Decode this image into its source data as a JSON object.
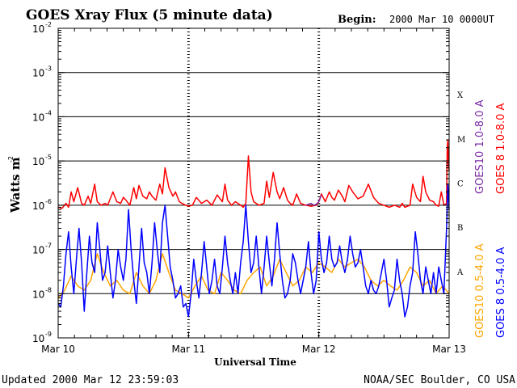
{
  "header": {
    "title": "GOES Xray Flux (5 minute data)",
    "begin_label": "Begin:",
    "begin_value": "2000 Mar 10 0000UT"
  },
  "footer": {
    "updated": "Updated 2000 Mar 12 23:59:03",
    "source": "NOAA/SEC Boulder, CO USA"
  },
  "chart_data": {
    "type": "line",
    "ylabel_main": "Watts m",
    "ylabel_sup": "-2",
    "xlabel": "Universal Time",
    "yscale": "log",
    "ylim": [
      1e-09,
      0.01
    ],
    "y_ticks": [
      {
        "exp": -2,
        "text": "10",
        "sup": "-2"
      },
      {
        "exp": -3,
        "text": "10",
        "sup": "-3"
      },
      {
        "exp": -4,
        "text": "10",
        "sup": "-4"
      },
      {
        "exp": -5,
        "text": "10",
        "sup": "-5"
      },
      {
        "exp": -6,
        "text": "10",
        "sup": "-6"
      },
      {
        "exp": -7,
        "text": "10",
        "sup": "-7"
      },
      {
        "exp": -8,
        "text": "10",
        "sup": "-8"
      },
      {
        "exp": -9,
        "text": "10",
        "sup": "-9"
      }
    ],
    "x_ticks": [
      {
        "day": 0,
        "label": "Mar 10"
      },
      {
        "day": 1,
        "label": "Mar 11"
      },
      {
        "day": 2,
        "label": "Mar 12"
      },
      {
        "day": 3,
        "label": "Mar 13"
      }
    ],
    "xlim_days": [
      0,
      3
    ],
    "grid_exps": [
      -3,
      -4,
      -5,
      -6,
      -7,
      -8
    ],
    "flare_classes": [
      {
        "label": "X",
        "exp": -3.5
      },
      {
        "label": "M",
        "exp": -4.5
      },
      {
        "label": "C",
        "exp": -5.5
      },
      {
        "label": "B",
        "exp": -6.5
      },
      {
        "label": "A",
        "exp": -7.5
      }
    ],
    "colors": {
      "goes10_long": "#7b2ca6",
      "goes8_long": "#ff0000",
      "goes10_short": "#ffa500",
      "goes8_short": "#0000ff"
    },
    "legend": [
      {
        "text": "GOES10 1.0-8.0 A",
        "color": "#7b2ca6"
      },
      {
        "text": "GOES 8 1.0-8.0 A",
        "color": "#ff0000"
      },
      {
        "text": "GOES10 0.5-4.0 A",
        "color": "#ffa500"
      },
      {
        "text": "GOES 8 0.5-4.0 A",
        "color": "#0000ff"
      }
    ],
    "series": [
      {
        "name": "GOES 8 1.0-8.0 A",
        "color": "#ff0000",
        "x": [
          0,
          0.03,
          0.06,
          0.08,
          0.1,
          0.12,
          0.15,
          0.18,
          0.2,
          0.23,
          0.25,
          0.28,
          0.3,
          0.33,
          0.36,
          0.38,
          0.42,
          0.45,
          0.48,
          0.5,
          0.52,
          0.55,
          0.58,
          0.6,
          0.62,
          0.65,
          0.68,
          0.7,
          0.72,
          0.75,
          0.78,
          0.8,
          0.82,
          0.85,
          0.88,
          0.9,
          0.93,
          0.95,
          0.98,
          1.0,
          1.03,
          1.06,
          1.1,
          1.14,
          1.18,
          1.22,
          1.26,
          1.28,
          1.3,
          1.33,
          1.36,
          1.4,
          1.42,
          1.44,
          1.46,
          1.48,
          1.5,
          1.54,
          1.58,
          1.6,
          1.62,
          1.65,
          1.68,
          1.7,
          1.73,
          1.76,
          1.78,
          1.8,
          1.83,
          1.86,
          1.9,
          1.94,
          1.98,
          2.0,
          2.02,
          2.05,
          2.08,
          2.1,
          2.12,
          2.15,
          2.18,
          2.2,
          2.23,
          2.26,
          2.3,
          2.34,
          2.38,
          2.42,
          2.46,
          2.5,
          2.54,
          2.58,
          2.6,
          2.62,
          2.64,
          2.66,
          2.7,
          2.72,
          2.75,
          2.78,
          2.8,
          2.82,
          2.85,
          2.88,
          2.9,
          2.92,
          2.94,
          2.96,
          2.98,
          2.985,
          2.99,
          2.995,
          3.0
        ],
        "y": [
          9e-07,
          8.5e-07,
          1.1e-06,
          9e-07,
          2e-06,
          1.2e-06,
          2.5e-06,
          1.1e-06,
          1e-06,
          1.6e-06,
          1.1e-06,
          3e-06,
          1.2e-06,
          1e-06,
          1.1e-06,
          1e-06,
          2e-06,
          1.2e-06,
          1.1e-06,
          1.5e-06,
          1.3e-06,
          1e-06,
          2.5e-06,
          1.4e-06,
          2.8e-06,
          1.6e-06,
          1.4e-06,
          2e-06,
          1.6e-06,
          1.3e-06,
          3e-06,
          1.8e-06,
          7e-06,
          2.5e-06,
          1.6e-06,
          2e-06,
          1.2e-06,
          1.1e-06,
          1e-06,
          9.5e-07,
          1e-06,
          1.5e-06,
          1.1e-06,
          1.3e-06,
          1e-06,
          1.7e-06,
          1.2e-06,
          3e-06,
          1.3e-06,
          1e-06,
          1.2e-06,
          1e-06,
          9e-07,
          1.1e-06,
          1.3e-05,
          2e-06,
          1.2e-06,
          1e-06,
          1.1e-06,
          3.5e-06,
          1.5e-06,
          5.5e-06,
          2e-06,
          1.4e-06,
          2.5e-06,
          1.3e-06,
          1.1e-06,
          1e-06,
          1.8e-06,
          1.1e-06,
          1e-06,
          9.5e-07,
          1e-06,
          1.2e-06,
          1.8e-06,
          1.2e-06,
          2e-06,
          1.5e-06,
          1.3e-06,
          2.2e-06,
          1.6e-06,
          1.2e-06,
          2.8e-06,
          2e-06,
          1.4e-06,
          1.6e-06,
          3e-06,
          1.5e-06,
          1.1e-06,
          1e-06,
          9e-07,
          1e-06,
          9.5e-07,
          9e-07,
          1.1e-06,
          9e-07,
          1e-06,
          3e-06,
          1.5e-06,
          1.2e-06,
          4.5e-06,
          2e-06,
          1.3e-06,
          1.2e-06,
          1e-06,
          9.5e-07,
          2e-06,
          1e-06,
          1.1e-06,
          2e-05,
          3e-05,
          8e-06,
          6e-06
        ]
      },
      {
        "name": "GOES10 1.0-8.0 A",
        "color": "#7b2ca6",
        "x": [
          1.9,
          1.92,
          1.94,
          1.96,
          1.98,
          2.0,
          2.02
        ],
        "y": [
          1e-06,
          1.05e-06,
          1.1e-06,
          1e-06,
          1.05e-06,
          1.2e-06,
          1.7e-06
        ]
      },
      {
        "name": "GOES10 0.5-4.0 A",
        "color": "#ffa500",
        "x": [
          0,
          0.05,
          0.1,
          0.15,
          0.2,
          0.25,
          0.3,
          0.35,
          0.4,
          0.45,
          0.5,
          0.55,
          0.6,
          0.65,
          0.7,
          0.75,
          0.8,
          0.85,
          0.9,
          0.95,
          1.0,
          1.05,
          1.1,
          1.15,
          1.2,
          1.25,
          1.3,
          1.35,
          1.4,
          1.45,
          1.5,
          1.55,
          1.6,
          1.65,
          1.7,
          1.75,
          1.8,
          1.85,
          1.9,
          1.95,
          2.0,
          2.05,
          2.1,
          2.15,
          2.2,
          2.25,
          2.3,
          2.35,
          2.4,
          2.45,
          2.5,
          2.55,
          2.6,
          2.65,
          2.7,
          2.75,
          2.8,
          2.85,
          2.9,
          2.95,
          3.0
        ],
        "y": [
          8e-09,
          1.2e-08,
          2.5e-08,
          1.5e-08,
          1.2e-08,
          2e-08,
          8e-08,
          3e-08,
          1.5e-08,
          2e-08,
          1.2e-08,
          1e-08,
          3e-08,
          1.5e-08,
          1e-08,
          2e-08,
          8e-08,
          3e-08,
          1.2e-08,
          1e-08,
          8e-09,
          1.5e-08,
          2.5e-08,
          1.2e-08,
          1e-08,
          3e-08,
          2e-08,
          1.2e-08,
          1e-08,
          2e-08,
          3e-08,
          4e-08,
          1.5e-08,
          2.5e-08,
          6e-08,
          3e-08,
          1.5e-08,
          2e-08,
          4e-08,
          3e-08,
          5e-08,
          4e-08,
          3e-08,
          6e-08,
          4e-08,
          5e-08,
          6e-08,
          4e-08,
          2e-08,
          1.5e-08,
          2e-08,
          1.5e-08,
          1.2e-08,
          2e-08,
          4e-08,
          3e-08,
          1.5e-08,
          2e-08,
          1e-08,
          1.5e-08,
          1e-08
        ]
      },
      {
        "name": "GOES 8 0.5-4.0 A",
        "color": "#0000ff",
        "x": [
          0,
          0.02,
          0.04,
          0.06,
          0.08,
          0.1,
          0.12,
          0.14,
          0.16,
          0.18,
          0.2,
          0.22,
          0.24,
          0.26,
          0.28,
          0.3,
          0.32,
          0.34,
          0.36,
          0.38,
          0.4,
          0.42,
          0.44,
          0.46,
          0.48,
          0.5,
          0.52,
          0.54,
          0.56,
          0.58,
          0.6,
          0.62,
          0.64,
          0.66,
          0.68,
          0.7,
          0.72,
          0.74,
          0.76,
          0.78,
          0.8,
          0.82,
          0.84,
          0.86,
          0.88,
          0.9,
          0.92,
          0.94,
          0.96,
          0.98,
          1.0,
          1.02,
          1.04,
          1.06,
          1.08,
          1.1,
          1.12,
          1.14,
          1.16,
          1.18,
          1.2,
          1.22,
          1.24,
          1.26,
          1.28,
          1.3,
          1.32,
          1.34,
          1.36,
          1.38,
          1.4,
          1.42,
          1.44,
          1.46,
          1.48,
          1.5,
          1.52,
          1.54,
          1.56,
          1.58,
          1.6,
          1.62,
          1.64,
          1.66,
          1.68,
          1.7,
          1.72,
          1.74,
          1.76,
          1.78,
          1.8,
          1.82,
          1.84,
          1.86,
          1.88,
          1.9,
          1.92,
          1.94,
          1.96,
          1.98,
          2.0,
          2.02,
          2.04,
          2.06,
          2.08,
          2.1,
          2.12,
          2.14,
          2.16,
          2.18,
          2.2,
          2.22,
          2.24,
          2.26,
          2.28,
          2.3,
          2.32,
          2.34,
          2.36,
          2.38,
          2.4,
          2.42,
          2.44,
          2.46,
          2.48,
          2.5,
          2.52,
          2.54,
          2.56,
          2.58,
          2.6,
          2.62,
          2.64,
          2.66,
          2.68,
          2.7,
          2.72,
          2.74,
          2.76,
          2.78,
          2.8,
          2.82,
          2.84,
          2.86,
          2.88,
          2.9,
          2.92,
          2.94,
          2.96,
          2.98,
          2.99,
          3.0
        ],
        "y": [
          6e-09,
          5e-09,
          1.5e-08,
          8e-08,
          2.5e-07,
          4e-08,
          1e-08,
          6e-08,
          3e-07,
          5e-08,
          4e-09,
          3e-08,
          2e-07,
          5e-08,
          3e-08,
          4e-07,
          1e-07,
          2e-08,
          3e-08,
          1.2e-07,
          3e-08,
          8e-09,
          2e-08,
          1e-07,
          4e-08,
          2e-08,
          6e-08,
          8e-07,
          1e-07,
          2e-08,
          6e-09,
          4e-08,
          3e-07,
          5e-08,
          3e-08,
          1e-08,
          5e-08,
          4e-07,
          1e-07,
          3e-08,
          4e-07,
          1e-06,
          2e-07,
          4e-08,
          2e-08,
          8e-09,
          1e-08,
          1.5e-08,
          5e-09,
          6e-09,
          3e-09,
          1e-08,
          6e-08,
          2e-08,
          8e-09,
          3e-08,
          1.5e-07,
          4e-08,
          1e-08,
          2e-08,
          6e-08,
          1.5e-08,
          1e-08,
          4e-08,
          2e-07,
          5e-08,
          2e-08,
          1e-08,
          3e-08,
          1e-08,
          5e-08,
          1.5e-07,
          1e-06,
          1.5e-07,
          3e-08,
          5e-08,
          2e-07,
          4e-08,
          1e-08,
          4e-08,
          2e-07,
          5e-08,
          1.5e-08,
          6e-08,
          4e-07,
          8e-08,
          2e-08,
          8e-09,
          1e-08,
          2e-08,
          8e-08,
          5e-08,
          2e-08,
          1e-08,
          2e-08,
          4e-08,
          1.5e-07,
          3e-08,
          1e-08,
          2e-08,
          2.5e-07,
          6e-08,
          3e-08,
          5e-08,
          2e-07,
          6e-08,
          4e-08,
          5e-08,
          1.2e-07,
          5e-08,
          3e-08,
          6e-08,
          2e-07,
          8e-08,
          4e-08,
          5e-08,
          1e-07,
          4e-08,
          1.5e-08,
          1e-08,
          2e-08,
          1.2e-08,
          1e-08,
          1.5e-08,
          3e-08,
          6e-08,
          2e-08,
          5e-09,
          8e-09,
          1.2e-08,
          6e-08,
          2e-08,
          1e-08,
          3e-09,
          5e-09,
          1.5e-08,
          3e-08,
          2.5e-07,
          8e-08,
          2e-08,
          1e-08,
          4e-08,
          2e-08,
          1e-08,
          3e-08,
          1e-08,
          4e-08,
          2e-08,
          1e-08,
          3e-07,
          3e-06,
          8e-07
        ]
      }
    ]
  }
}
